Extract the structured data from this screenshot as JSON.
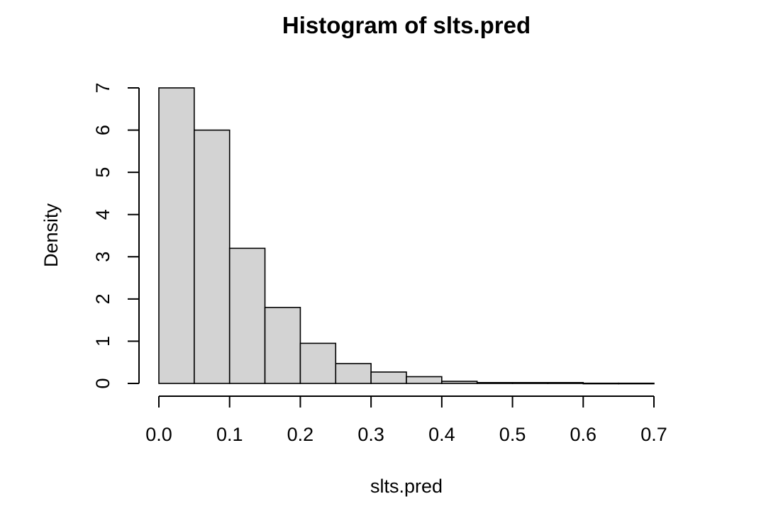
{
  "chart_data": {
    "type": "bar",
    "subtype": "histogram",
    "title": "Histogram of slts.pred",
    "xlabel": "slts.pred",
    "ylabel": "Density",
    "bin_edges": [
      0.0,
      0.05,
      0.1,
      0.15,
      0.2,
      0.25,
      0.3,
      0.35,
      0.4,
      0.45,
      0.5,
      0.55,
      0.6,
      0.65,
      0.7
    ],
    "values": [
      7.0,
      6.0,
      3.2,
      1.8,
      0.95,
      0.47,
      0.27,
      0.16,
      0.05,
      0.02,
      0.02,
      0.02,
      0.005,
      0.005
    ],
    "xlim": [
      0.0,
      0.7
    ],
    "ylim": [
      0,
      7
    ],
    "x_ticks": [
      0.0,
      0.1,
      0.2,
      0.3,
      0.4,
      0.5,
      0.6,
      0.7
    ],
    "x_tick_labels": [
      "0.0",
      "0.1",
      "0.2",
      "0.3",
      "0.4",
      "0.5",
      "0.6",
      "0.7"
    ],
    "y_ticks": [
      0,
      1,
      2,
      3,
      4,
      5,
      6,
      7
    ],
    "y_tick_labels": [
      "0",
      "1",
      "2",
      "3",
      "4",
      "5",
      "6",
      "7"
    ],
    "bar_fill": "#d3d3d3",
    "bar_stroke": "#000000",
    "grid": false,
    "legend": "none"
  }
}
